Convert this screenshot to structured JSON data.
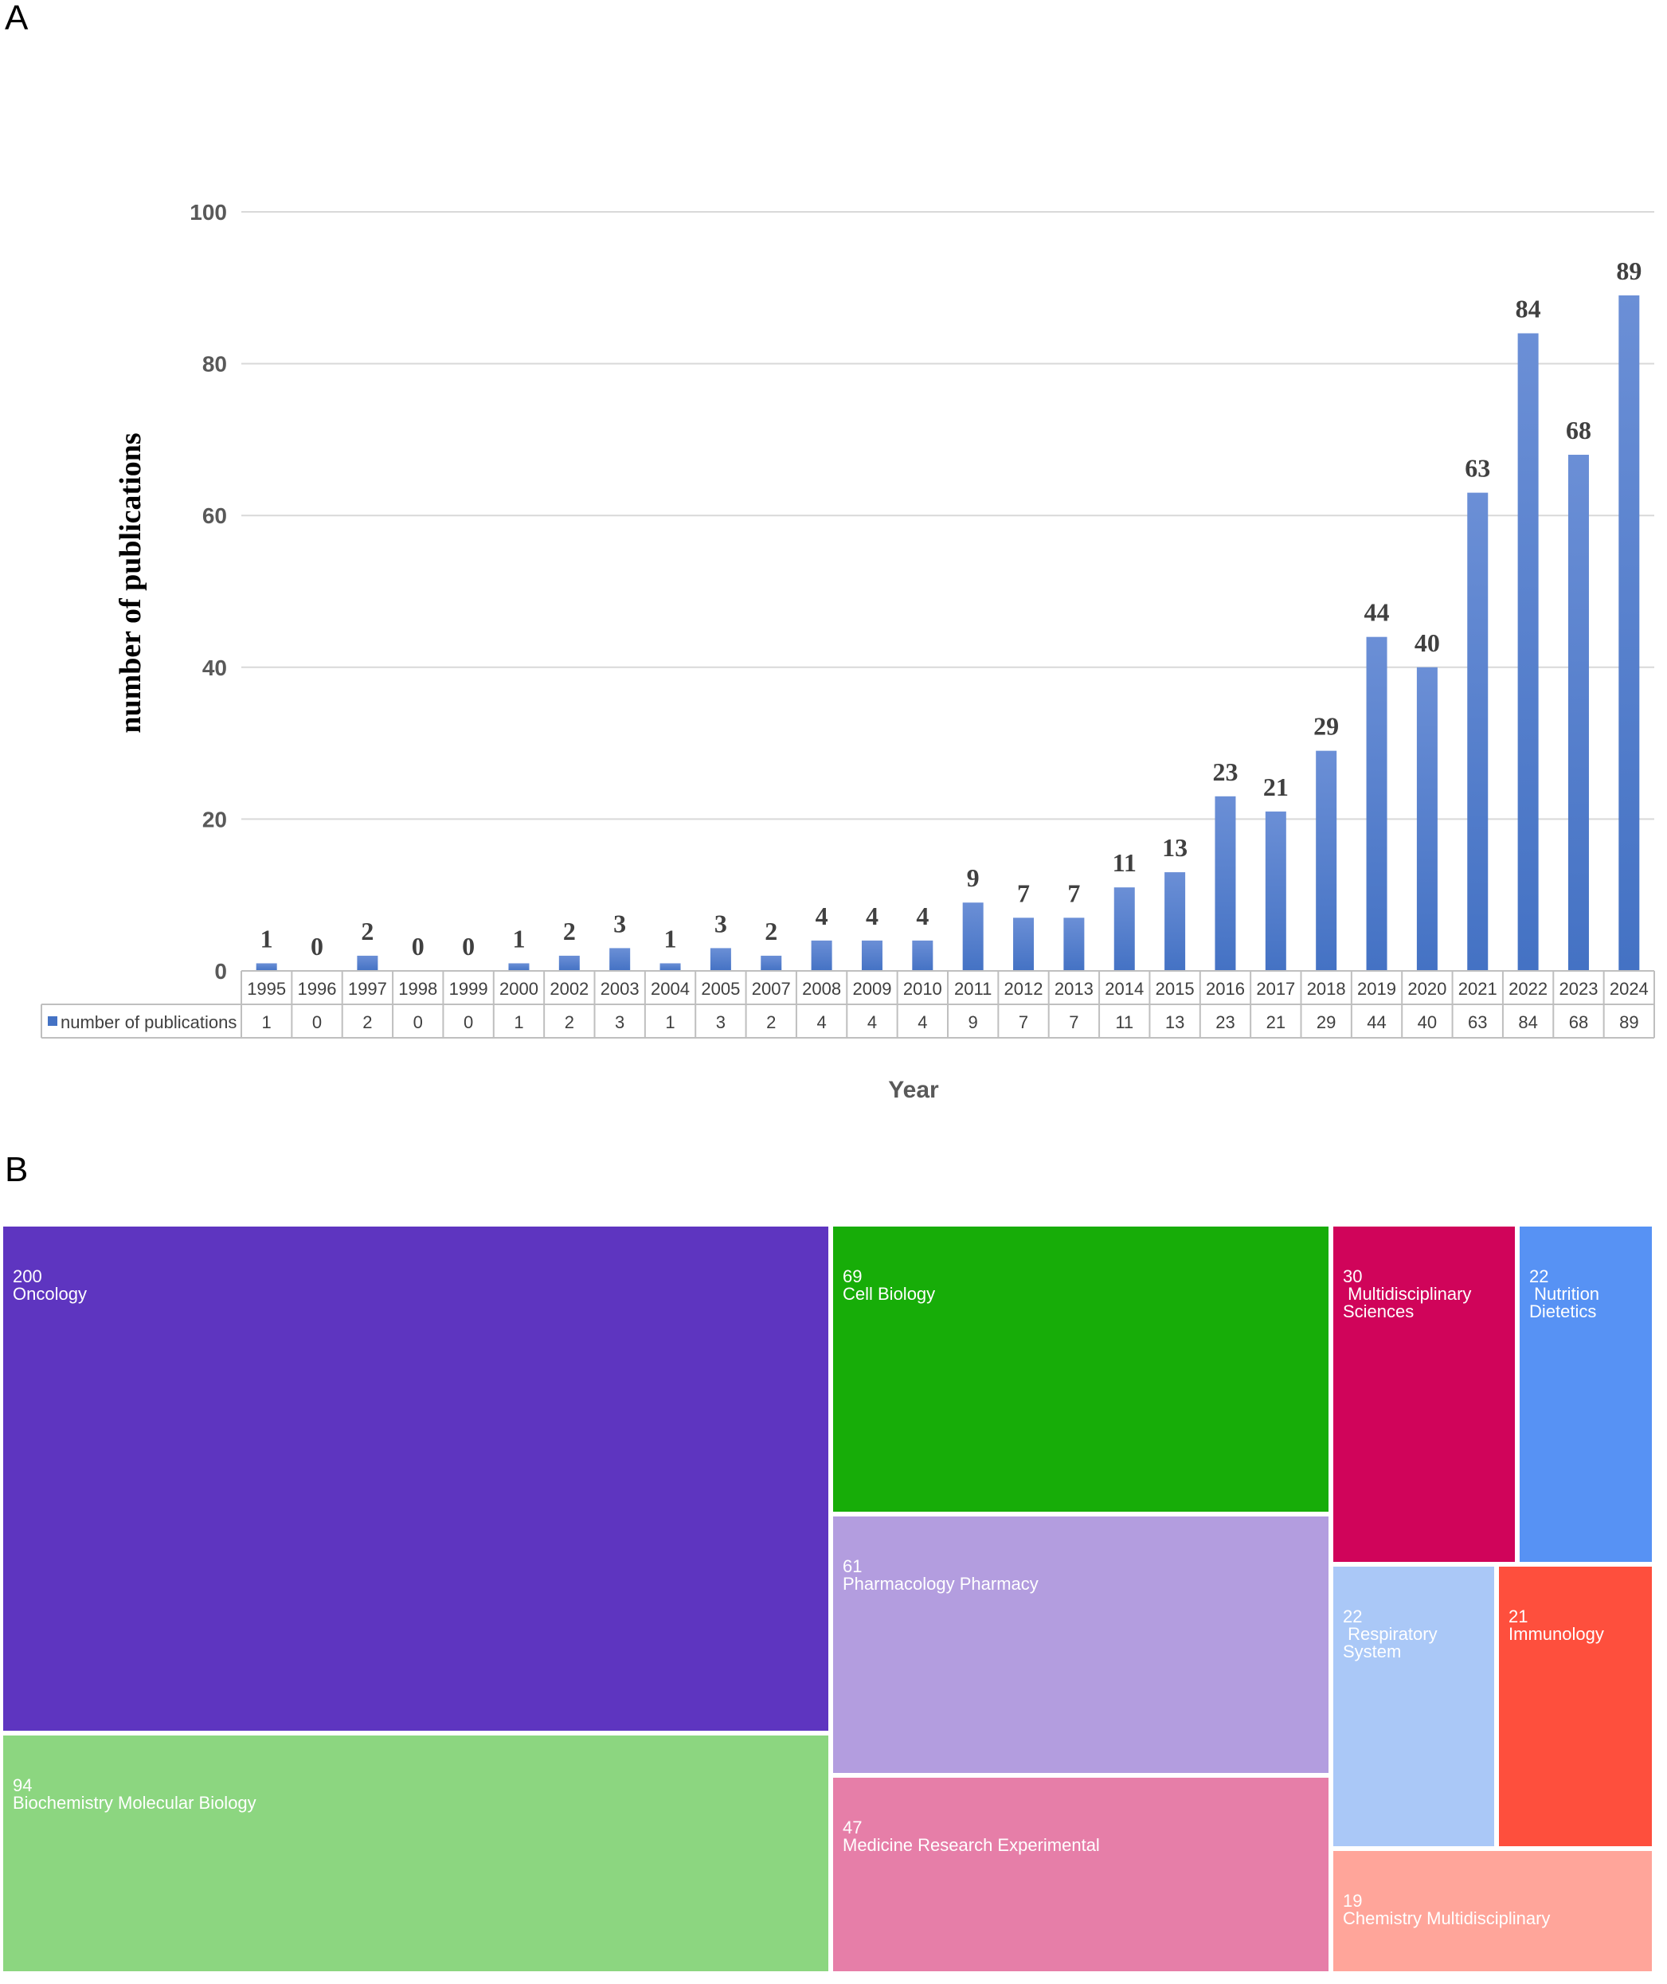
{
  "panels": {
    "a_label": "A",
    "b_label": "B"
  },
  "chart_data": {
    "type": "bar",
    "ylabel": "number of publications",
    "xlabel": "Year",
    "ylim": [
      0,
      100
    ],
    "yticks": [
      0,
      20,
      40,
      60,
      80,
      100
    ],
    "grid": true,
    "legend": "data-table-left",
    "categories": [
      "1995",
      "1996",
      "1997",
      "1998",
      "1999",
      "2000",
      "2002",
      "2003",
      "2004",
      "2005",
      "2007",
      "2008",
      "2009",
      "2010",
      "2011",
      "2012",
      "2013",
      "2014",
      "2015",
      "2016",
      "2017",
      "2018",
      "2019",
      "2020",
      "2021",
      "2022",
      "2023",
      "2024"
    ],
    "series": [
      {
        "name": "number of publications",
        "color": "#4472c4",
        "values": [
          1,
          0,
          2,
          0,
          0,
          1,
          2,
          3,
          1,
          3,
          2,
          4,
          4,
          4,
          9,
          7,
          7,
          11,
          13,
          23,
          21,
          29,
          44,
          40,
          63,
          84,
          68,
          89
        ]
      }
    ]
  },
  "treemap": {
    "items": [
      {
        "value": "200",
        "name": "Oncology",
        "color": "#5e35c0"
      },
      {
        "value": "94",
        "name": "Biochemistry Molecular Biology",
        "color": "#8cd680"
      },
      {
        "value": "69",
        "name": "Cell Biology",
        "color": "#17ad08"
      },
      {
        "value": "61",
        "name": "Pharmacology Pharmacy",
        "color": "#b39ddf"
      },
      {
        "value": "47",
        "name": "Medicine Research Experimental",
        "color": "#e67ea8"
      },
      {
        "value": "30",
        "name": " Multidisciplinary\nSciences",
        "color": "#d0045a"
      },
      {
        "value": "22",
        "name": " Nutrition\nDietetics",
        "color": "#5792f4"
      },
      {
        "value": "22",
        "name": " Respiratory\nSystem",
        "color": "#aac8f7"
      },
      {
        "value": "21",
        "name": "Immunology",
        "color": "#fe4f3d"
      },
      {
        "value": "19",
        "name": "Chemistry Multidisciplinary",
        "color": "#ffa59a"
      }
    ]
  }
}
